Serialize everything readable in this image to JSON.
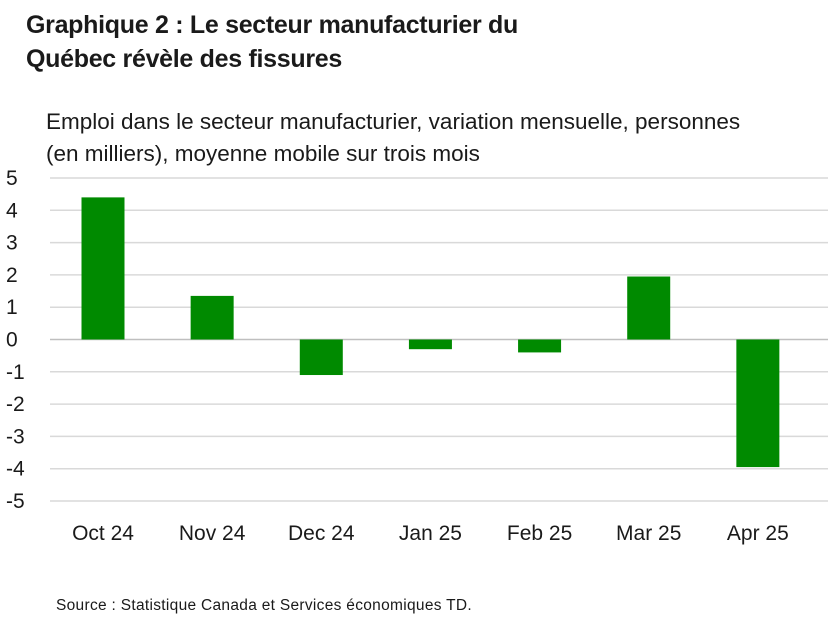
{
  "title_line1": "Graphique 2 : Le secteur manufacturier du",
  "title_line2": "Québec révèle des fissures",
  "subtitle_line1": "Emploi dans le secteur manufacturier, variation mensuelle, personnes",
  "subtitle_line2": "(en milliers), moyenne mobile sur trois mois",
  "source": "Source : Statistique Canada et Services économiques TD.",
  "chart_data": {
    "type": "bar",
    "title": "Graphique 2 : Le secteur manufacturier du Québec révèle des fissures",
    "subtitle": "Emploi dans le secteur manufacturier, variation mensuelle, personnes (en milliers), moyenne mobile sur trois mois",
    "categories": [
      "Oct 24",
      "Nov 24",
      "Dec 24",
      "Jan 25",
      "Feb 25",
      "Mar 25",
      "Apr 25"
    ],
    "values": [
      4.4,
      1.35,
      -1.1,
      -0.3,
      -0.4,
      1.95,
      -3.95
    ],
    "ylim": [
      -5,
      5
    ],
    "yticks": [
      5,
      4,
      3,
      2,
      1,
      0,
      -1,
      -2,
      -3,
      -4,
      -5
    ],
    "ytick_labels": [
      "5",
      "4",
      "3",
      "2",
      "1",
      "0",
      "-1",
      "-2",
      "-3",
      "-4",
      "-5"
    ],
    "xlabel": "",
    "ylabel": "",
    "grid": true,
    "legend": "none",
    "bar_color": "#008a00"
  }
}
